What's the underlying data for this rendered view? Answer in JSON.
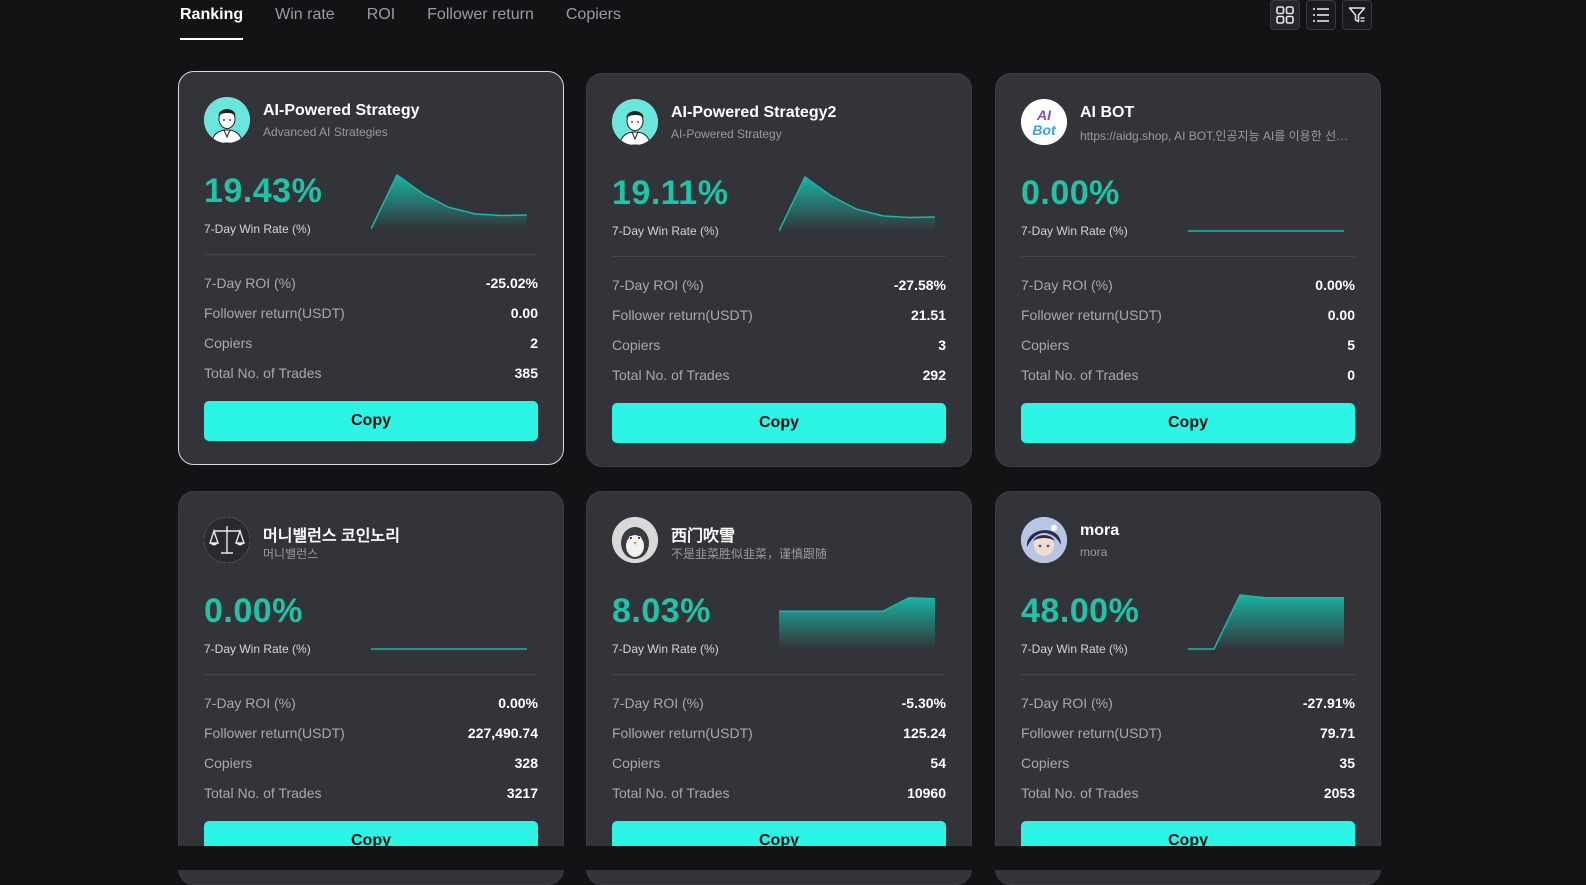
{
  "tabs": [
    "Ranking",
    "Win rate",
    "ROI",
    "Follower return",
    "Copiers"
  ],
  "active_tab": "Ranking",
  "view_tools": [
    "grid-view-icon",
    "list-view-icon",
    "filter-icon"
  ],
  "labels": {
    "win_rate": "7-Day Win Rate (%)",
    "roi": "7-Day ROI (%)",
    "follower_return": "Follower return(USDT)",
    "copiers": "Copiers",
    "trades": "Total No. of Trades",
    "copy": "Copy"
  },
  "colors": {
    "accent": "#2cf5e6",
    "win_rate": "#1ec3a8",
    "card_bg": "#33343a",
    "page_bg": "#131316"
  },
  "cards": [
    {
      "name": "AI-Powered Strategy",
      "subtitle": "Advanced AI Strategies",
      "avatar": "man-avatar",
      "win_rate": "19.43%",
      "roi": "-25.02%",
      "follower_return": "0.00",
      "copiers": "2",
      "trades": "385",
      "trend": [
        0.0,
        1.0,
        0.65,
        0.4,
        0.28,
        0.25,
        0.26
      ]
    },
    {
      "name": "AI-Powered Strategy2",
      "subtitle": "AI-Powered Strategy",
      "avatar": "man-avatar",
      "win_rate": "19.11%",
      "roi": "-27.58%",
      "follower_return": "21.51",
      "copiers": "3",
      "trades": "292",
      "trend": [
        0.0,
        1.0,
        0.65,
        0.4,
        0.28,
        0.25,
        0.26
      ]
    },
    {
      "name": "AI BOT",
      "subtitle": "https://aidg.shop, AI BOT,인공지능 AI를 이용한 선…",
      "avatar": "ai-bot-logo",
      "avatar_text": [
        "AI",
        "Bot"
      ],
      "win_rate": "0.00%",
      "roi": "0.00%",
      "follower_return": "0.00",
      "copiers": "5",
      "trades": "0",
      "trend": [
        0,
        0,
        0,
        0,
        0,
        0,
        0
      ]
    },
    {
      "name": "머니밸런스 코인노리",
      "subtitle": "머니밸런스",
      "avatar": "scales-avatar",
      "win_rate": "0.00%",
      "roi": "0.00%",
      "follower_return": "227,490.74",
      "copiers": "328",
      "trades": "3217",
      "trend": [
        0,
        0,
        0,
        0,
        0,
        0,
        0
      ]
    },
    {
      "name": "西门吹雪",
      "subtitle": "不是韭菜胜似韭菜，谨慎跟随",
      "avatar": "penguin-avatar",
      "win_rate": "8.03%",
      "roi": "-5.30%",
      "follower_return": "125.24",
      "copiers": "54",
      "trades": "10960",
      "trend": [
        0.7,
        0.7,
        0.7,
        0.7,
        0.7,
        0.95,
        0.93
      ]
    },
    {
      "name": "mora",
      "subtitle": "mora",
      "avatar": "anime-avatar",
      "win_rate": "48.00%",
      "roi": "-27.91%",
      "follower_return": "79.71",
      "copiers": "35",
      "trades": "2053",
      "trend": [
        0.0,
        0.0,
        1.0,
        0.95,
        0.95,
        0.95,
        0.95
      ]
    }
  ]
}
